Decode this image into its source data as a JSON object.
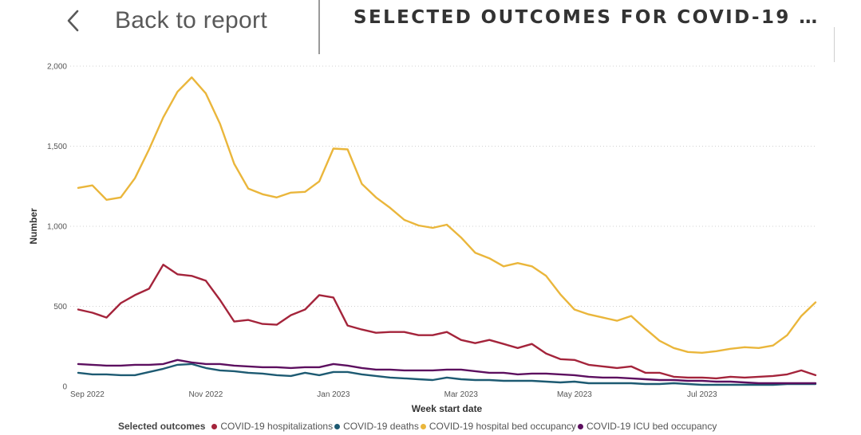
{
  "nav": {
    "back_label": "Back to report",
    "back_icon": "chevron-left-icon"
  },
  "page": {
    "title": "SELECTED OUTCOMES FOR COVID-19 C..."
  },
  "legend": {
    "title": "Selected outcomes"
  },
  "chart_data": {
    "type": "line",
    "xlabel": "Week start date",
    "ylabel": "Number",
    "ylim": [
      0,
      2000
    ],
    "y_ticks": [
      0,
      500,
      1000,
      1500,
      2000
    ],
    "y_tick_labels": [
      "0",
      "500",
      "1,000",
      "1,500",
      "2,000"
    ],
    "x_ticks": [
      {
        "index": 0,
        "label": "Sep 2022"
      },
      {
        "index": 9,
        "label": "Nov 2022"
      },
      {
        "index": 18,
        "label": "Jan 2023"
      },
      {
        "index": 27,
        "label": "Mar 2023"
      },
      {
        "index": 35,
        "label": "May 2023"
      },
      {
        "index": 44,
        "label": "Jul 2023"
      }
    ],
    "n_weeks": 53,
    "grid": true,
    "legend_position": "bottom",
    "series": [
      {
        "name": "COVID-19 hospitalizations",
        "color": "#a4243b",
        "values": [
          480,
          460,
          430,
          520,
          570,
          610,
          760,
          700,
          690,
          660,
          540,
          405,
          415,
          390,
          385,
          445,
          480,
          570,
          555,
          380,
          355,
          335,
          340,
          340,
          320,
          320,
          340,
          290,
          270,
          290,
          265,
          240,
          265,
          205,
          170,
          165,
          135,
          125,
          115,
          125,
          85,
          85,
          60,
          55,
          55,
          50,
          60,
          55,
          60,
          65,
          75,
          100,
          70
        ]
      },
      {
        "name": "COVID-19 deaths",
        "color": "#1d5a72",
        "values": [
          85,
          75,
          75,
          70,
          70,
          90,
          110,
          135,
          140,
          115,
          100,
          95,
          85,
          80,
          70,
          65,
          85,
          70,
          90,
          90,
          75,
          65,
          55,
          50,
          45,
          40,
          55,
          45,
          40,
          40,
          35,
          35,
          35,
          30,
          25,
          30,
          20,
          20,
          20,
          20,
          15,
          15,
          20,
          15,
          10,
          10,
          10,
          10,
          10,
          10,
          15,
          15,
          15
        ]
      },
      {
        "name": "COVID-19 hospital bed occupancy",
        "color": "#eab63b",
        "values": [
          1240,
          1255,
          1165,
          1180,
          1300,
          1480,
          1680,
          1840,
          1930,
          1830,
          1640,
          1390,
          1235,
          1200,
          1180,
          1210,
          1215,
          1280,
          1485,
          1480,
          1265,
          1180,
          1115,
          1040,
          1005,
          990,
          1010,
          930,
          835,
          800,
          750,
          770,
          750,
          690,
          575,
          480,
          450,
          430,
          410,
          440,
          360,
          285,
          240,
          215,
          210,
          220,
          235,
          245,
          240,
          255,
          320,
          440,
          525
        ]
      },
      {
        "name": "COVID-19 ICU bed occupancy",
        "color": "#5c0f5f",
        "values": [
          140,
          135,
          130,
          130,
          135,
          135,
          140,
          165,
          150,
          140,
          140,
          130,
          125,
          120,
          120,
          115,
          120,
          120,
          140,
          130,
          115,
          105,
          105,
          100,
          100,
          100,
          105,
          105,
          95,
          85,
          85,
          75,
          80,
          80,
          75,
          70,
          60,
          55,
          55,
          50,
          45,
          40,
          40,
          35,
          35,
          30,
          30,
          25,
          20,
          20,
          20,
          20,
          20
        ]
      }
    ]
  }
}
